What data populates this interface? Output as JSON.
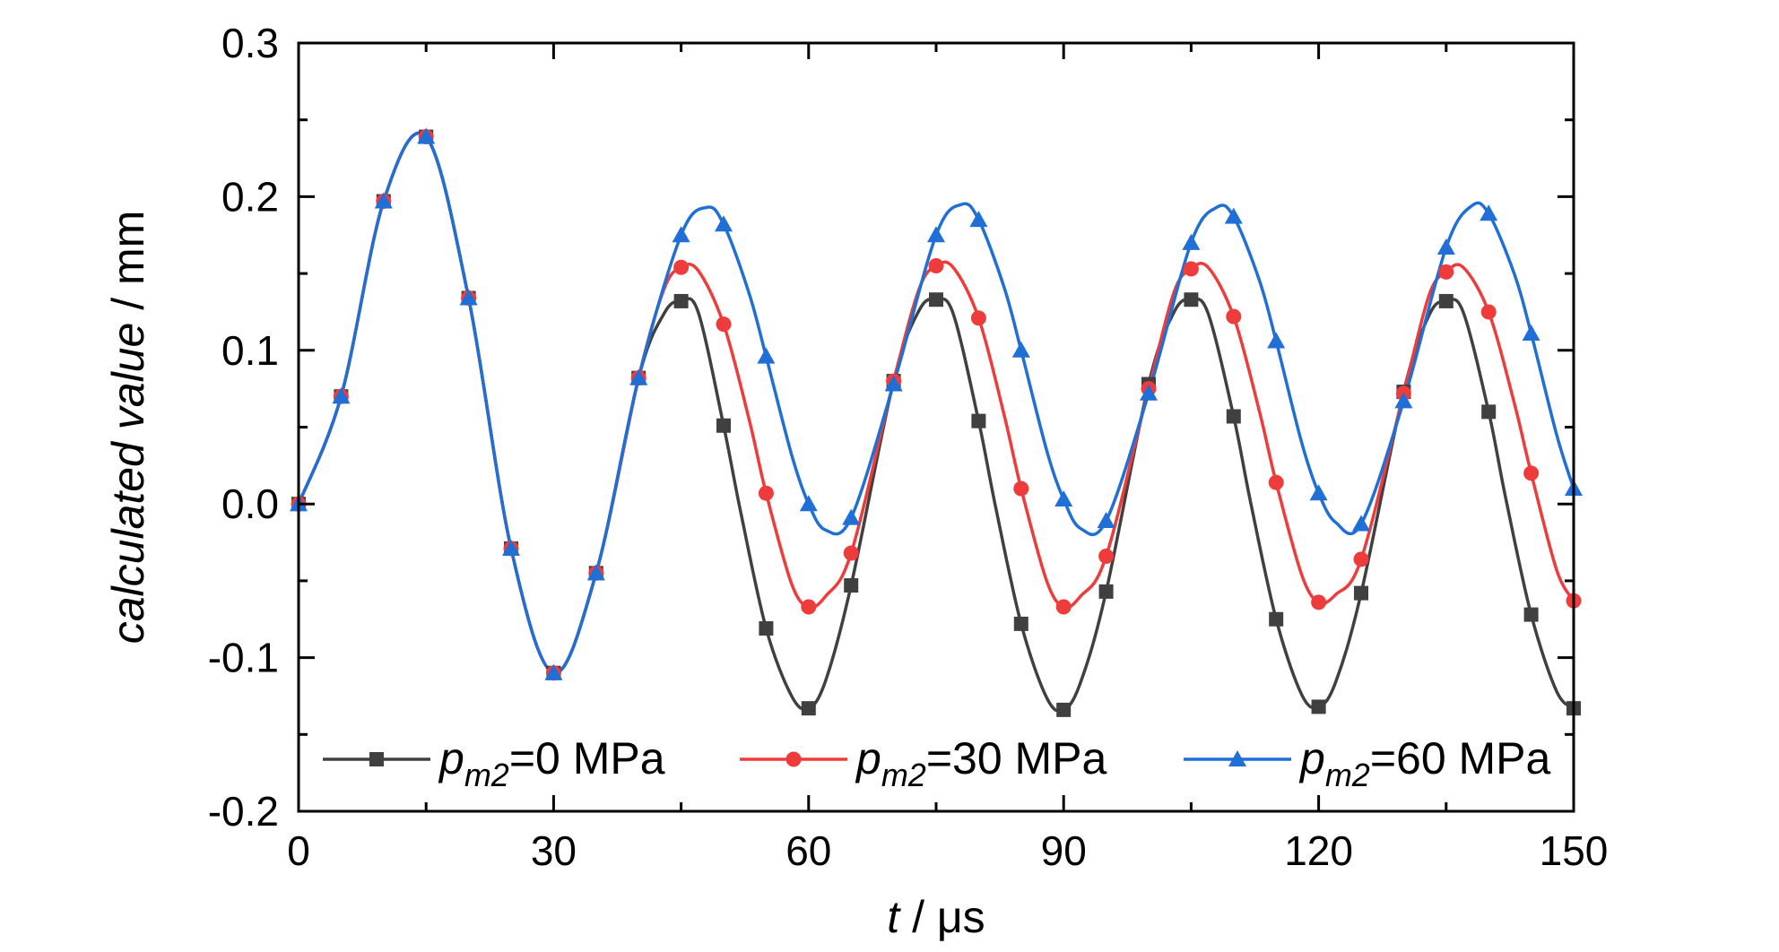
{
  "chart_data": {
    "type": "line",
    "xlabel_italic": "t",
    "xlabel_rest": " / μs",
    "ylabel_italic": "calculated value",
    "ylabel_rest": " / mm",
    "xlim": [
      0,
      150
    ],
    "ylim": [
      -0.2,
      0.3
    ],
    "xticks": [
      0,
      30,
      60,
      90,
      120,
      150
    ],
    "xtick_labels": [
      "0",
      "30",
      "60",
      "90",
      "120",
      "150"
    ],
    "yticks": [
      -0.2,
      -0.1,
      0.0,
      0.1,
      0.2,
      0.3
    ],
    "ytick_labels": [
      "-0.2",
      "-0.1",
      "0.0",
      "0.1",
      "0.2",
      "0.3"
    ],
    "grid": false,
    "legend_position": "bottom",
    "series": [
      {
        "label_prefix": "p",
        "label_sub": "m2",
        "label_suffix": "=0 MPa",
        "color": "#404040",
        "marker": "square",
        "points": [
          [
            0,
            0
          ],
          [
            5,
            0.07
          ],
          [
            10,
            0.197
          ],
          [
            15,
            0.239
          ],
          [
            20,
            0.134
          ],
          [
            25,
            -0.029
          ],
          [
            30,
            -0.11
          ],
          [
            35,
            -0.045
          ],
          [
            40,
            0.082
          ],
          [
            45,
            0.132
          ],
          [
            50,
            0.051
          ],
          [
            55,
            -0.081
          ],
          [
            60,
            -0.133
          ],
          [
            65,
            -0.053
          ],
          [
            70,
            0.08
          ],
          [
            75,
            0.133
          ],
          [
            80,
            0.054
          ],
          [
            85,
            -0.078
          ],
          [
            90,
            -0.134
          ],
          [
            95,
            -0.057
          ],
          [
            100,
            0.078
          ],
          [
            105,
            0.133
          ],
          [
            110,
            0.057
          ],
          [
            115,
            -0.075
          ],
          [
            120,
            -0.132
          ],
          [
            125,
            -0.058
          ],
          [
            130,
            0.073
          ],
          [
            135,
            0.132
          ],
          [
            140,
            0.06
          ],
          [
            145,
            -0.072
          ],
          [
            150,
            -0.133
          ]
        ],
        "curve": [
          [
            0,
            0
          ],
          [
            5,
            0.07
          ],
          [
            10,
            0.197
          ],
          [
            15,
            0.239
          ],
          [
            20,
            0.134
          ],
          [
            25,
            -0.029
          ],
          [
            30,
            -0.11
          ],
          [
            35,
            -0.045
          ],
          [
            40,
            0.082
          ],
          [
            43,
            0.124
          ],
          [
            45,
            0.132
          ],
          [
            47,
            0.125
          ],
          [
            50,
            0.051
          ],
          [
            52,
            -0.005
          ],
          [
            55,
            -0.081
          ],
          [
            58,
            -0.125
          ],
          [
            60,
            -0.133
          ],
          [
            62,
            -0.115
          ],
          [
            65,
            -0.053
          ],
          [
            70,
            0.08
          ],
          [
            73,
            0.126
          ],
          [
            75,
            0.133
          ],
          [
            77,
            0.124
          ],
          [
            80,
            0.054
          ],
          [
            82,
            -0.002
          ],
          [
            85,
            -0.078
          ],
          [
            88,
            -0.126
          ],
          [
            90,
            -0.134
          ],
          [
            92,
            -0.116
          ],
          [
            95,
            -0.057
          ],
          [
            100,
            0.078
          ],
          [
            103,
            0.125
          ],
          [
            105,
            0.133
          ],
          [
            107,
            0.124
          ],
          [
            110,
            0.057
          ],
          [
            112,
            0.001
          ],
          [
            115,
            -0.075
          ],
          [
            118,
            -0.124
          ],
          [
            120,
            -0.132
          ],
          [
            122,
            -0.116
          ],
          [
            125,
            -0.058
          ],
          [
            130,
            0.073
          ],
          [
            133,
            0.123
          ],
          [
            135,
            0.132
          ],
          [
            137,
            0.125
          ],
          [
            140,
            0.06
          ],
          [
            142,
            0.004
          ],
          [
            145,
            -0.072
          ],
          [
            148,
            -0.122
          ],
          [
            150,
            -0.133
          ]
        ]
      },
      {
        "label_prefix": "p",
        "label_sub": "m2",
        "label_suffix": "=30 MPa",
        "color": "#ee3b3b",
        "marker": "circle",
        "points": [
          [
            0,
            0
          ],
          [
            5,
            0.07
          ],
          [
            10,
            0.197
          ],
          [
            15,
            0.239
          ],
          [
            20,
            0.134
          ],
          [
            25,
            -0.029
          ],
          [
            30,
            -0.11
          ],
          [
            35,
            -0.045
          ],
          [
            40,
            0.082
          ],
          [
            45,
            0.154
          ],
          [
            50,
            0.117
          ],
          [
            55,
            0.007
          ],
          [
            60,
            -0.067
          ],
          [
            65,
            -0.032
          ],
          [
            70,
            0.08
          ],
          [
            75,
            0.155
          ],
          [
            80,
            0.121
          ],
          [
            85,
            0.01
          ],
          [
            90,
            -0.067
          ],
          [
            95,
            -0.034
          ],
          [
            100,
            0.075
          ],
          [
            105,
            0.153
          ],
          [
            110,
            0.122
          ],
          [
            115,
            0.014
          ],
          [
            120,
            -0.064
          ],
          [
            125,
            -0.036
          ],
          [
            130,
            0.072
          ],
          [
            135,
            0.151
          ],
          [
            140,
            0.125
          ],
          [
            145,
            0.02
          ],
          [
            150,
            -0.063
          ]
        ],
        "curve": [
          [
            0,
            0
          ],
          [
            5,
            0.07
          ],
          [
            10,
            0.197
          ],
          [
            15,
            0.239
          ],
          [
            20,
            0.134
          ],
          [
            25,
            -0.029
          ],
          [
            30,
            -0.11
          ],
          [
            35,
            -0.045
          ],
          [
            40,
            0.082
          ],
          [
            43,
            0.14
          ],
          [
            45,
            0.154
          ],
          [
            47,
            0.152
          ],
          [
            50,
            0.117
          ],
          [
            53,
            0.055
          ],
          [
            55,
            0.007
          ],
          [
            58,
            -0.052
          ],
          [
            60,
            -0.067
          ],
          [
            62,
            -0.06
          ],
          [
            65,
            -0.032
          ],
          [
            70,
            0.08
          ],
          [
            73,
            0.14
          ],
          [
            75,
            0.155
          ],
          [
            77,
            0.154
          ],
          [
            80,
            0.121
          ],
          [
            83,
            0.058
          ],
          [
            85,
            0.01
          ],
          [
            88,
            -0.05
          ],
          [
            90,
            -0.067
          ],
          [
            92,
            -0.06
          ],
          [
            95,
            -0.034
          ],
          [
            100,
            0.075
          ],
          [
            103,
            0.138
          ],
          [
            105,
            0.153
          ],
          [
            107,
            0.154
          ],
          [
            110,
            0.122
          ],
          [
            113,
            0.061
          ],
          [
            115,
            0.014
          ],
          [
            118,
            -0.046
          ],
          [
            120,
            -0.064
          ],
          [
            122,
            -0.059
          ],
          [
            125,
            -0.036
          ],
          [
            130,
            0.072
          ],
          [
            133,
            0.136
          ],
          [
            135,
            0.151
          ],
          [
            137,
            0.154
          ],
          [
            140,
            0.125
          ],
          [
            143,
            0.066
          ],
          [
            145,
            0.02
          ],
          [
            148,
            -0.043
          ],
          [
            150,
            -0.063
          ]
        ]
      },
      {
        "label_prefix": "p",
        "label_sub": "m2",
        "label_suffix": "=60 MPa",
        "color": "#1f6fd6",
        "marker": "triangle",
        "points": [
          [
            0,
            0
          ],
          [
            5,
            0.07
          ],
          [
            10,
            0.197
          ],
          [
            15,
            0.239
          ],
          [
            20,
            0.134
          ],
          [
            25,
            -0.029
          ],
          [
            30,
            -0.11
          ],
          [
            35,
            -0.045
          ],
          [
            40,
            0.082
          ],
          [
            45,
            0.175
          ],
          [
            50,
            0.182
          ],
          [
            55,
            0.096
          ],
          [
            60,
            0.0
          ],
          [
            65,
            -0.009
          ],
          [
            70,
            0.078
          ],
          [
            75,
            0.175
          ],
          [
            80,
            0.185
          ],
          [
            85,
            0.1
          ],
          [
            90,
            0.003
          ],
          [
            95,
            -0.011
          ],
          [
            100,
            0.072
          ],
          [
            105,
            0.17
          ],
          [
            110,
            0.187
          ],
          [
            115,
            0.106
          ],
          [
            120,
            0.007
          ],
          [
            125,
            -0.013
          ],
          [
            130,
            0.067
          ],
          [
            135,
            0.167
          ],
          [
            140,
            0.189
          ],
          [
            145,
            0.111
          ],
          [
            150,
            0.01
          ]
        ],
        "curve": [
          [
            0,
            0
          ],
          [
            5,
            0.07
          ],
          [
            10,
            0.197
          ],
          [
            15,
            0.239
          ],
          [
            20,
            0.134
          ],
          [
            25,
            -0.029
          ],
          [
            30,
            -0.11
          ],
          [
            35,
            -0.045
          ],
          [
            40,
            0.082
          ],
          [
            45,
            0.175
          ],
          [
            48,
            0.193
          ],
          [
            50,
            0.182
          ],
          [
            53,
            0.137
          ],
          [
            55,
            0.096
          ],
          [
            58,
            0.032
          ],
          [
            60,
            0.0
          ],
          [
            62,
            -0.017
          ],
          [
            65,
            -0.009
          ],
          [
            70,
            0.078
          ],
          [
            75,
            0.175
          ],
          [
            78,
            0.195
          ],
          [
            80,
            0.185
          ],
          [
            83,
            0.141
          ],
          [
            85,
            0.1
          ],
          [
            88,
            0.035
          ],
          [
            90,
            0.003
          ],
          [
            92,
            -0.016
          ],
          [
            95,
            -0.011
          ],
          [
            100,
            0.072
          ],
          [
            105,
            0.17
          ],
          [
            108,
            0.193
          ],
          [
            110,
            0.187
          ],
          [
            113,
            0.146
          ],
          [
            115,
            0.106
          ],
          [
            118,
            0.04
          ],
          [
            120,
            0.007
          ],
          [
            122,
            -0.012
          ],
          [
            125,
            -0.013
          ],
          [
            130,
            0.067
          ],
          [
            135,
            0.167
          ],
          [
            138,
            0.194
          ],
          [
            140,
            0.189
          ],
          [
            143,
            0.15
          ],
          [
            145,
            0.111
          ],
          [
            148,
            0.045
          ],
          [
            150,
            0.01
          ]
        ]
      }
    ]
  }
}
